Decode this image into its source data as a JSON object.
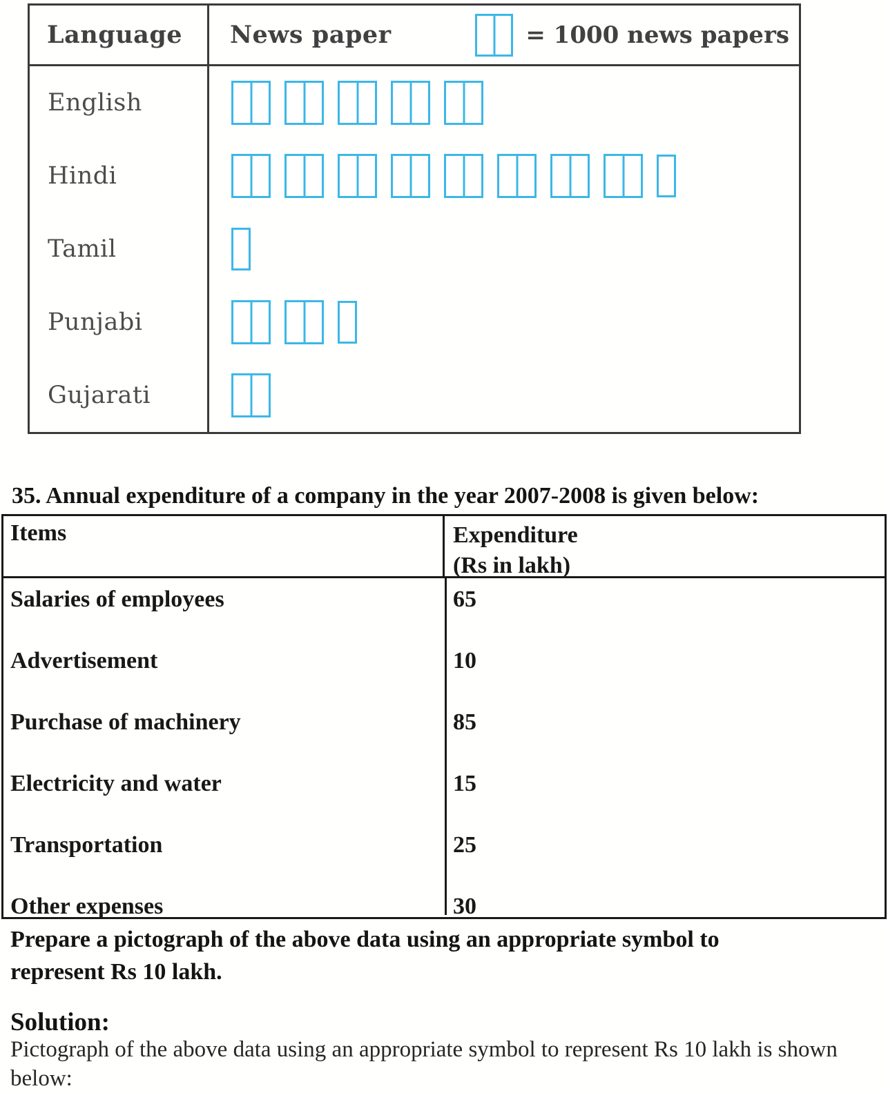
{
  "pictograph_table": {
    "header": {
      "language": "Language",
      "newspaper": "News paper",
      "legend_text": "= 1000 news papers"
    },
    "symbol_color": "#3cb7e7",
    "rows": [
      {
        "language": "English",
        "full_symbols": 5,
        "half_symbol": false
      },
      {
        "language": "Hindi",
        "full_symbols": 8,
        "half_symbol": true
      },
      {
        "language": "Tamil",
        "full_symbols": 0,
        "half_symbol": true
      },
      {
        "language": "Punjabi",
        "full_symbols": 2,
        "half_symbol": true
      },
      {
        "language": "Gujarati",
        "full_symbols": 1,
        "half_symbol": false
      }
    ]
  },
  "question": {
    "title": "35. Annual expenditure of a company in the year 2007-2008 is given below:",
    "table": {
      "col1_header": "Items",
      "col2_header_line1": "Expenditure",
      "col2_header_line2": "(Rs in lakh)",
      "rows": [
        {
          "item": "Salaries of employees",
          "value": "65"
        },
        {
          "item": "Advertisement",
          "value": "10"
        },
        {
          "item": "Purchase of machinery",
          "value": "85"
        },
        {
          "item": "Electricity and water",
          "value": "15"
        },
        {
          "item": "Transportation",
          "value": "25"
        },
        {
          "item": "Other expenses",
          "value": "30"
        }
      ]
    },
    "instruction_lines": [
      "Prepare a pictograph of the above data using an appropriate symbol to",
      "represent Rs 10 lakh."
    ]
  },
  "solution": {
    "heading": "Solution:",
    "body_lines": [
      "Pictograph of the above data using an appropriate symbol to represent Rs 10 lakh is shown",
      "below:"
    ]
  },
  "chart_data": [
    {
      "type": "bar",
      "variant": "pictograph",
      "categories": [
        "English",
        "Hindi",
        "Tamil",
        "Punjabi",
        "Gujarati"
      ],
      "values": [
        5000,
        8500,
        500,
        2500,
        1000
      ],
      "unit_per_symbol": 1000,
      "legend": "= 1000 news papers",
      "columns": [
        "Language",
        "News paper"
      ]
    },
    {
      "type": "table",
      "title": "35. Annual expenditure of a company in the year 2007-2008 is given below:",
      "columns": [
        "Items",
        "Expenditure (Rs in lakh)"
      ],
      "categories": [
        "Salaries of employees",
        "Advertisement",
        "Purchase of machinery",
        "Electricity and water",
        "Transportation",
        "Other expenses"
      ],
      "values": [
        65,
        10,
        85,
        15,
        25,
        30
      ]
    }
  ]
}
